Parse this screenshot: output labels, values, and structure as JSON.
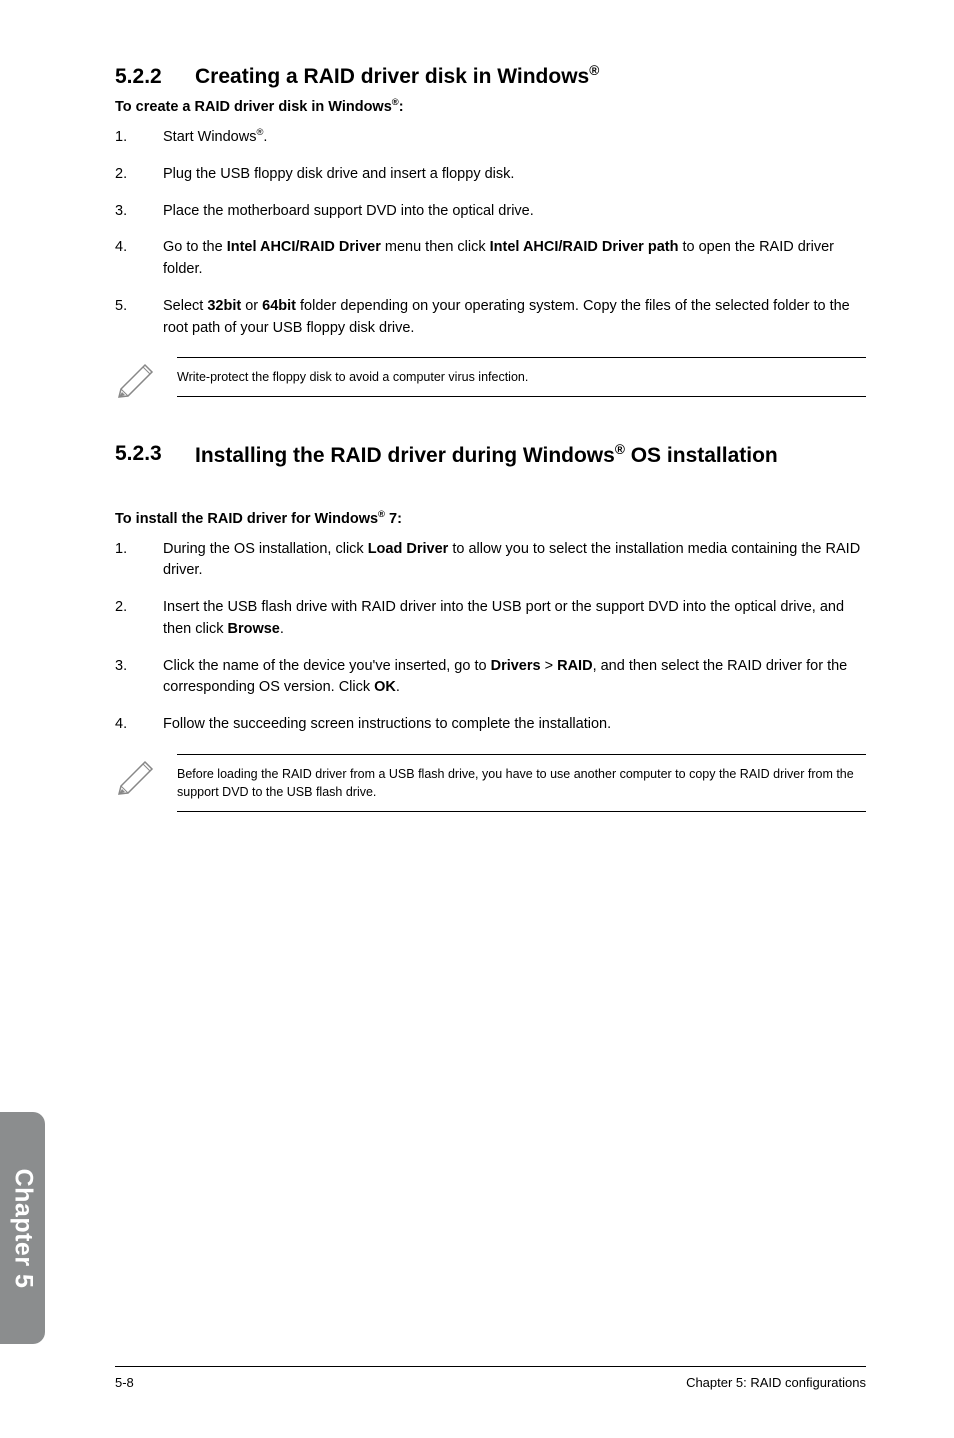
{
  "section1": {
    "number": "5.2.2",
    "title_pre": "Creating a RAID driver disk in Windows",
    "title_sup": "®"
  },
  "subheading1_pre": "To create a RAID driver disk in Windows",
  "subheading1_sup": "®",
  "subheading1_post": ":",
  "steps1": [
    {
      "num": "1.",
      "html": "Start Windows<span class=\"sup\">®</span>."
    },
    {
      "num": "2.",
      "html": "Plug the USB floppy disk drive and insert a floppy disk."
    },
    {
      "num": "3.",
      "html": "Place the motherboard support DVD into the optical drive."
    },
    {
      "num": "4.",
      "html": "Go to the <b>Intel AHCI/RAID Driver</b> menu then click <b>Intel AHCI/RAID Driver path</b> to open the RAID driver folder."
    },
    {
      "num": "5.",
      "html": "Select <b>32bit</b> or <b>64bit</b> folder depending on your operating system. Copy the files of the selected folder to the root path of your USB floppy disk drive."
    }
  ],
  "note1": "Write-protect the floppy disk to avoid a computer virus infection.",
  "section2": {
    "number": "5.2.3",
    "title_pre": "Installing the RAID driver during Windows",
    "title_sup": "®",
    "title_post": " OS installation"
  },
  "subheading2_pre": "To install the RAID driver for Windows",
  "subheading2_sup": "®",
  "subheading2_post": " 7:",
  "steps2": [
    {
      "num": "1.",
      "html": "During the OS installation, click <b>Load Driver</b> to allow you to select the installation media containing the RAID driver."
    },
    {
      "num": "2.",
      "html": "Insert the USB flash drive with RAID driver into the USB port or the support DVD into the optical drive, and then click <b>Browse</b>."
    },
    {
      "num": "3.",
      "html": "Click the name of the device you've inserted, go to <b>Drivers</b> > <b>RAID</b>, and then select the RAID driver for the corresponding OS version. Click <b>OK</b>."
    },
    {
      "num": "4.",
      "html": "Follow the succeeding screen instructions to complete the installation."
    }
  ],
  "note2": "Before loading the RAID driver from a USB flash drive, you have to use another computer to copy the RAID driver from the support DVD to the USB flash drive.",
  "chapter_tab": "Chapter 5",
  "footer": {
    "page": "5-8",
    "text": "Chapter 5: RAID configurations"
  },
  "colors": {
    "tab_bg": "#8b8d8e",
    "text": "#000000",
    "bg": "#ffffff"
  }
}
